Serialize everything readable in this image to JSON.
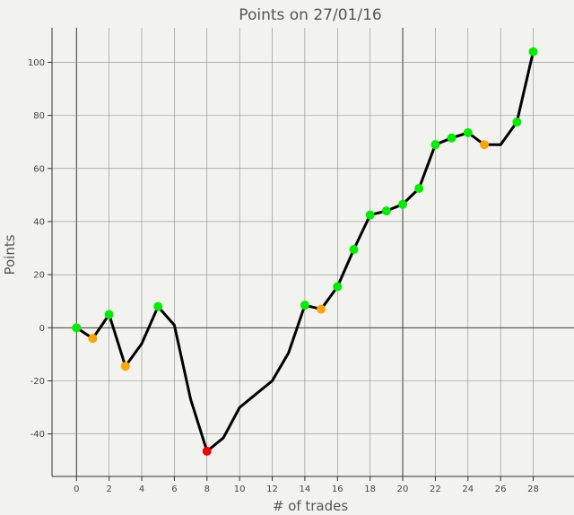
{
  "chart_data": {
    "type": "line",
    "title": "Points on 27/01/16",
    "xlabel": "# of trades",
    "ylabel": "Points",
    "xlim": [
      -1.5,
      30.5
    ],
    "ylim": [
      -56,
      113
    ],
    "xticks": [
      0,
      2,
      4,
      6,
      8,
      10,
      12,
      14,
      16,
      18,
      20,
      22,
      24,
      26,
      28
    ],
    "yticks": [
      -40,
      -20,
      0,
      20,
      40,
      60,
      80,
      100
    ],
    "grid": true,
    "series": [
      {
        "x": [
          0,
          1,
          2,
          3,
          4,
          5,
          6,
          7,
          8,
          9,
          10,
          11,
          12,
          13,
          14,
          15,
          16,
          17,
          18,
          19,
          20,
          21,
          22,
          23,
          24,
          25,
          26,
          27,
          28
        ],
        "values": [
          0,
          -4,
          5,
          -14.5,
          -6,
          8,
          1,
          -27,
          -46.5,
          -41.5,
          -30,
          -25,
          -20,
          -9.5,
          8.5,
          7,
          15.5,
          29.5,
          42.5,
          44,
          46.5,
          52.5,
          69,
          71.5,
          73.5,
          69,
          69,
          77.5,
          104
        ],
        "color": "#000000"
      }
    ],
    "markers": [
      {
        "x": 0,
        "y": 0,
        "color": "#00ee00"
      },
      {
        "x": 1,
        "y": -4,
        "color": "#ffa500"
      },
      {
        "x": 2,
        "y": 5,
        "color": "#00ee00"
      },
      {
        "x": 3,
        "y": -14.5,
        "color": "#ffa500"
      },
      {
        "x": 5,
        "y": 8,
        "color": "#00ee00"
      },
      {
        "x": 8,
        "y": -46.5,
        "color": "#ee0000"
      },
      {
        "x": 14,
        "y": 8.5,
        "color": "#00ee00"
      },
      {
        "x": 15,
        "y": 7,
        "color": "#ffa500"
      },
      {
        "x": 16,
        "y": 15.5,
        "color": "#00ee00"
      },
      {
        "x": 17,
        "y": 29.5,
        "color": "#00ee00"
      },
      {
        "x": 18,
        "y": 42.5,
        "color": "#00ee00"
      },
      {
        "x": 19,
        "y": 44,
        "color": "#00ee00"
      },
      {
        "x": 20,
        "y": 46.5,
        "color": "#00ee00"
      },
      {
        "x": 21,
        "y": 52.5,
        "color": "#00ee00"
      },
      {
        "x": 22,
        "y": 69,
        "color": "#00ee00"
      },
      {
        "x": 23,
        "y": 71.5,
        "color": "#00ee00"
      },
      {
        "x": 24,
        "y": 73.5,
        "color": "#00ee00"
      },
      {
        "x": 25,
        "y": 69,
        "color": "#ffa500"
      },
      {
        "x": 27,
        "y": 77.5,
        "color": "#00ee00"
      },
      {
        "x": 28,
        "y": 104,
        "color": "#00ee00"
      }
    ]
  }
}
